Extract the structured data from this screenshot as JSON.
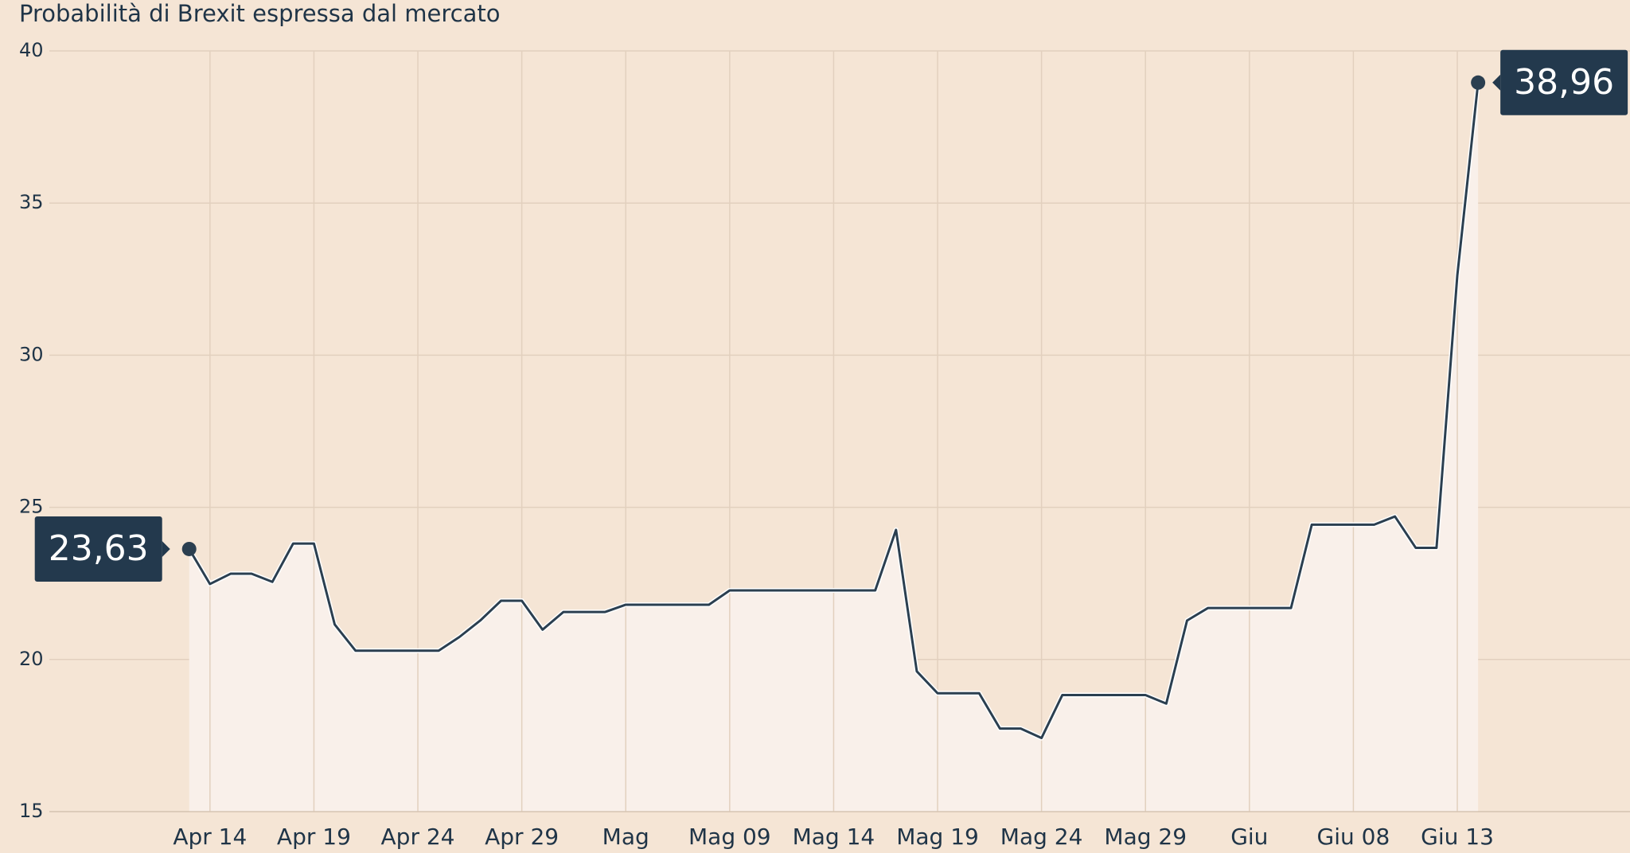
{
  "chart_data": {
    "type": "line",
    "title": "Probabilità di Brexit espressa dal mercato",
    "categories": [
      null,
      "Apr 14",
      null,
      null,
      null,
      null,
      "Apr 19",
      null,
      null,
      null,
      null,
      "Apr 24",
      null,
      null,
      null,
      null,
      "Apr 29",
      null,
      null,
      null,
      null,
      "Mag",
      null,
      null,
      null,
      null,
      "Mag 09",
      null,
      null,
      null,
      null,
      "Mag 14",
      null,
      null,
      null,
      null,
      "Mag 19",
      null,
      null,
      null,
      null,
      "Mag 24",
      null,
      null,
      null,
      null,
      "Mag 29",
      null,
      null,
      null,
      null,
      "Giu",
      null,
      null,
      null,
      null,
      "Giu 08",
      null,
      null,
      null,
      null,
      "Giu 13",
      null
    ],
    "values": [
      23.63,
      22.48,
      22.82,
      22.82,
      22.55,
      23.81,
      23.81,
      21.15,
      20.29,
      20.29,
      20.29,
      20.29,
      20.29,
      20.74,
      21.28,
      21.93,
      21.93,
      20.98,
      21.56,
      21.56,
      21.56,
      21.8,
      21.8,
      21.8,
      21.8,
      21.8,
      22.27,
      22.27,
      22.27,
      22.27,
      22.27,
      22.27,
      22.27,
      22.27,
      24.26,
      19.61,
      18.89,
      18.89,
      18.89,
      17.73,
      17.73,
      17.42,
      18.83,
      18.83,
      18.83,
      18.83,
      18.83,
      18.55,
      21.28,
      21.69,
      21.69,
      21.69,
      21.69,
      21.69,
      24.43,
      24.43,
      24.43,
      24.43,
      24.7,
      23.67,
      23.67,
      32.62,
      38.96
    ],
    "value_labels": [
      "23,63",
      null,
      null,
      null,
      null,
      null,
      null,
      null,
      null,
      null,
      null,
      null,
      null,
      null,
      null,
      null,
      null,
      null,
      null,
      null,
      null,
      null,
      null,
      null,
      null,
      null,
      null,
      null,
      null,
      null,
      null,
      null,
      null,
      null,
      null,
      null,
      null,
      null,
      null,
      null,
      null,
      null,
      null,
      null,
      null,
      null,
      null,
      null,
      null,
      null,
      null,
      null,
      null,
      null,
      null,
      null,
      null,
      null,
      null,
      null,
      null,
      null,
      "38,96"
    ],
    "color": "#2b3f50",
    "ylim": [
      15,
      40
    ],
    "yticks": [
      15,
      20,
      25,
      30,
      35,
      40
    ],
    "grid": true
  }
}
